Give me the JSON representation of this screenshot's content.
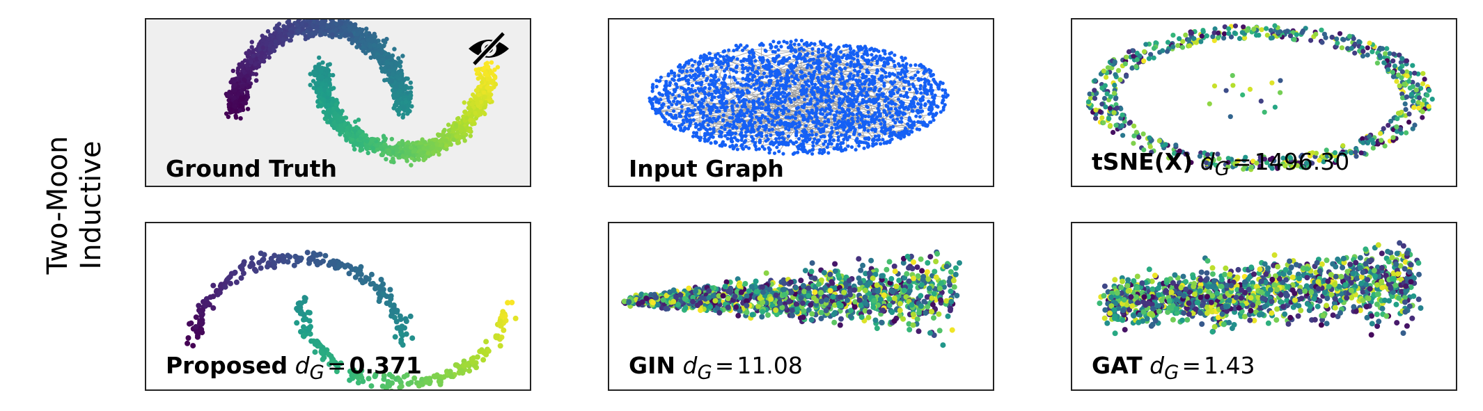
{
  "row_label": {
    "line1": "Two-Moon",
    "line2": "Inductive"
  },
  "metric_symbol": "d",
  "metric_subscript": "G",
  "equals": "=",
  "panels": {
    "ground_truth": {
      "title": "Ground Truth",
      "hidden_icon": "eye-slash-icon"
    },
    "input_graph": {
      "title": "Input Graph",
      "node_color": "#1560f5",
      "edge_color": "#9a9a9a"
    },
    "tsne": {
      "title": "tSNE(X)",
      "score": "1496.30"
    },
    "proposed": {
      "title": "Proposed",
      "score": "0.371"
    },
    "gin": {
      "title": "GIN",
      "score": "11.08"
    },
    "gat": {
      "title": "GAT",
      "score": "1.43"
    }
  },
  "colormap": "viridis",
  "chart_data": [
    {
      "type": "scatter",
      "panel": "ground_truth",
      "title": "Ground Truth",
      "color_by": "position along moon",
      "axes": "off"
    },
    {
      "type": "scatter",
      "panel": "input_graph",
      "title": "Input Graph",
      "axes": "off"
    },
    {
      "type": "scatter",
      "panel": "tsne",
      "title": "tSNE(X)",
      "metric": "d_G",
      "score": 1496.3,
      "axes": "off"
    },
    {
      "type": "scatter",
      "panel": "proposed",
      "title": "Proposed",
      "metric": "d_G",
      "score": 0.371,
      "axes": "off"
    },
    {
      "type": "scatter",
      "panel": "gin",
      "title": "GIN",
      "metric": "d_G",
      "score": 11.08,
      "axes": "off"
    },
    {
      "type": "scatter",
      "panel": "gat",
      "title": "GAT",
      "metric": "d_G",
      "score": 1.43,
      "axes": "off"
    }
  ]
}
